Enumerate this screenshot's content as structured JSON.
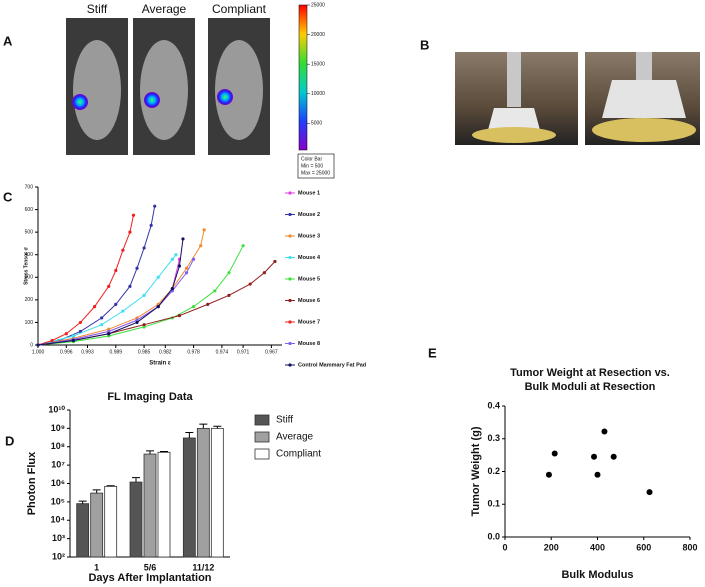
{
  "panel_a": {
    "label": "A",
    "images": [
      "Stiff",
      "Average",
      "Compliant"
    ],
    "colorbar": {
      "lim": [
        500,
        25000
      ],
      "ticks": [
        25000,
        20000,
        15000,
        10000,
        5000
      ],
      "legend": [
        "Color Bar",
        "Min = 500",
        "Max = 25000"
      ]
    }
  },
  "panel_b": {
    "label": "B"
  },
  "chart_data": [
    {
      "type": "line",
      "panel_label": "C",
      "xlabel": "Strain ε",
      "ylabel": "Stress Tensor σ",
      "xlim": [
        1.0,
        0.9655
      ],
      "xticks": [
        {
          "value": 1.0,
          "label": "1.000"
        },
        0.996,
        0.993,
        0.989,
        0.985,
        0.982,
        0.978,
        0.974,
        0.971,
        0.967
      ],
      "ylim": [
        0,
        700
      ],
      "yticks": [
        0,
        100,
        200,
        300,
        400,
        500,
        600,
        700
      ],
      "series": [
        {
          "name": "Mouse 1",
          "color": "#e040e0",
          "x": [
            1.0,
            0.995,
            0.99,
            0.986,
            0.983,
            0.981,
            0.98
          ],
          "values": [
            0,
            25,
            60,
            110,
            170,
            250,
            380
          ]
        },
        {
          "name": "Mouse 2",
          "color": "#3434a8",
          "x": [
            1.0,
            0.997,
            0.994,
            0.991,
            0.989,
            0.987,
            0.986,
            0.985,
            0.984,
            0.9835
          ],
          "values": [
            0,
            20,
            60,
            120,
            180,
            260,
            340,
            430,
            530,
            615
          ]
        },
        {
          "name": "Mouse 3",
          "color": "#f08a30",
          "x": [
            1.0,
            0.995,
            0.99,
            0.986,
            0.983,
            0.981,
            0.979,
            0.977,
            0.9765
          ],
          "values": [
            0,
            30,
            70,
            120,
            180,
            250,
            340,
            440,
            510
          ]
        },
        {
          "name": "Mouse 4",
          "color": "#40e0f0",
          "x": [
            1.0,
            0.995,
            0.991,
            0.988,
            0.985,
            0.983,
            0.981,
            0.9805
          ],
          "values": [
            0,
            40,
            90,
            150,
            220,
            300,
            380,
            400
          ]
        },
        {
          "name": "Mouse 5",
          "color": "#40e040",
          "x": [
            1.0,
            0.995,
            0.99,
            0.985,
            0.981,
            0.978,
            0.975,
            0.973,
            0.971
          ],
          "values": [
            0,
            15,
            40,
            80,
            120,
            170,
            240,
            320,
            440
          ]
        },
        {
          "name": "Mouse 6",
          "color": "#902020",
          "x": [
            1.0,
            0.995,
            0.99,
            0.985,
            0.98,
            0.976,
            0.973,
            0.97,
            0.968,
            0.9665
          ],
          "values": [
            0,
            20,
            50,
            90,
            130,
            180,
            220,
            270,
            320,
            370
          ]
        },
        {
          "name": "Mouse 7",
          "color": "#f02020",
          "x": [
            1.0,
            0.998,
            0.996,
            0.994,
            0.992,
            0.99,
            0.989,
            0.988,
            0.987,
            0.9865
          ],
          "values": [
            0,
            20,
            50,
            100,
            170,
            260,
            330,
            420,
            500,
            575
          ]
        },
        {
          "name": "Mouse 8",
          "color": "#8060f0",
          "x": [
            1.0,
            0.995,
            0.99,
            0.986,
            0.983,
            0.981,
            0.979,
            0.978
          ],
          "values": [
            0,
            25,
            60,
            110,
            170,
            240,
            320,
            380
          ]
        },
        {
          "name": "Control Mammary Fat Pad",
          "color": "#101060",
          "x": [
            1.0,
            0.995,
            0.99,
            0.986,
            0.983,
            0.981,
            0.98,
            0.9795
          ],
          "values": [
            0,
            20,
            50,
            100,
            170,
            250,
            350,
            470
          ]
        }
      ]
    },
    {
      "type": "bar",
      "panel_label": "D",
      "title": "FL Imaging Data",
      "xlabel": "Days After Implantation",
      "ylabel": "Photon Flux",
      "log_scale": true,
      "ylim": [
        100,
        10000000000
      ],
      "yticks": [
        {
          "value": 100,
          "label": "10²"
        },
        {
          "value": 1000,
          "label": "10³"
        },
        {
          "value": 10000,
          "label": "10⁴"
        },
        {
          "value": 100000,
          "label": "10⁵"
        },
        {
          "value": 1000000,
          "label": "10⁶"
        },
        {
          "value": 10000000,
          "label": "10⁷"
        },
        {
          "value": 100000000,
          "label": "10⁸"
        },
        {
          "value": 1000000000,
          "label": "10⁹"
        },
        {
          "value": 10000000000,
          "label": "10¹⁰"
        }
      ],
      "categories": [
        "1",
        "5/6",
        "11/12"
      ],
      "series": [
        {
          "name": "Stiff",
          "color": "#555555",
          "values": [
            80000,
            1200000,
            300000000
          ],
          "errors": [
            30000,
            900000,
            300000000
          ]
        },
        {
          "name": "Average",
          "color": "#a0a0a0",
          "values": [
            300000,
            40000000,
            1000000000
          ],
          "errors": [
            150000,
            20000000,
            700000000
          ]
        },
        {
          "name": "Compliant",
          "color": "#ffffff",
          "values": [
            700000,
            50000000,
            1000000000
          ],
          "errors": [
            50000,
            5000000,
            300000000
          ]
        }
      ]
    },
    {
      "type": "scatter",
      "panel_label": "E",
      "title": [
        "Tumor Weight at Resection vs.",
        "Bulk Moduli at Resection"
      ],
      "xlabel": "Bulk Modulus",
      "ylabel": "Tumor Weight (g)",
      "color": "#000000",
      "xlim": [
        0,
        800
      ],
      "xticks": [
        0,
        200,
        400,
        600,
        800
      ],
      "ylim": [
        0,
        0.4
      ],
      "yticks": [
        {
          "value": 0,
          "label": "0.0"
        },
        0.1,
        0.2,
        0.3,
        0.4
      ],
      "x": [
        190,
        215,
        385,
        400,
        430,
        470,
        625
      ],
      "values": [
        0.19,
        0.255,
        0.245,
        0.19,
        0.322,
        0.245,
        0.137
      ]
    }
  ]
}
